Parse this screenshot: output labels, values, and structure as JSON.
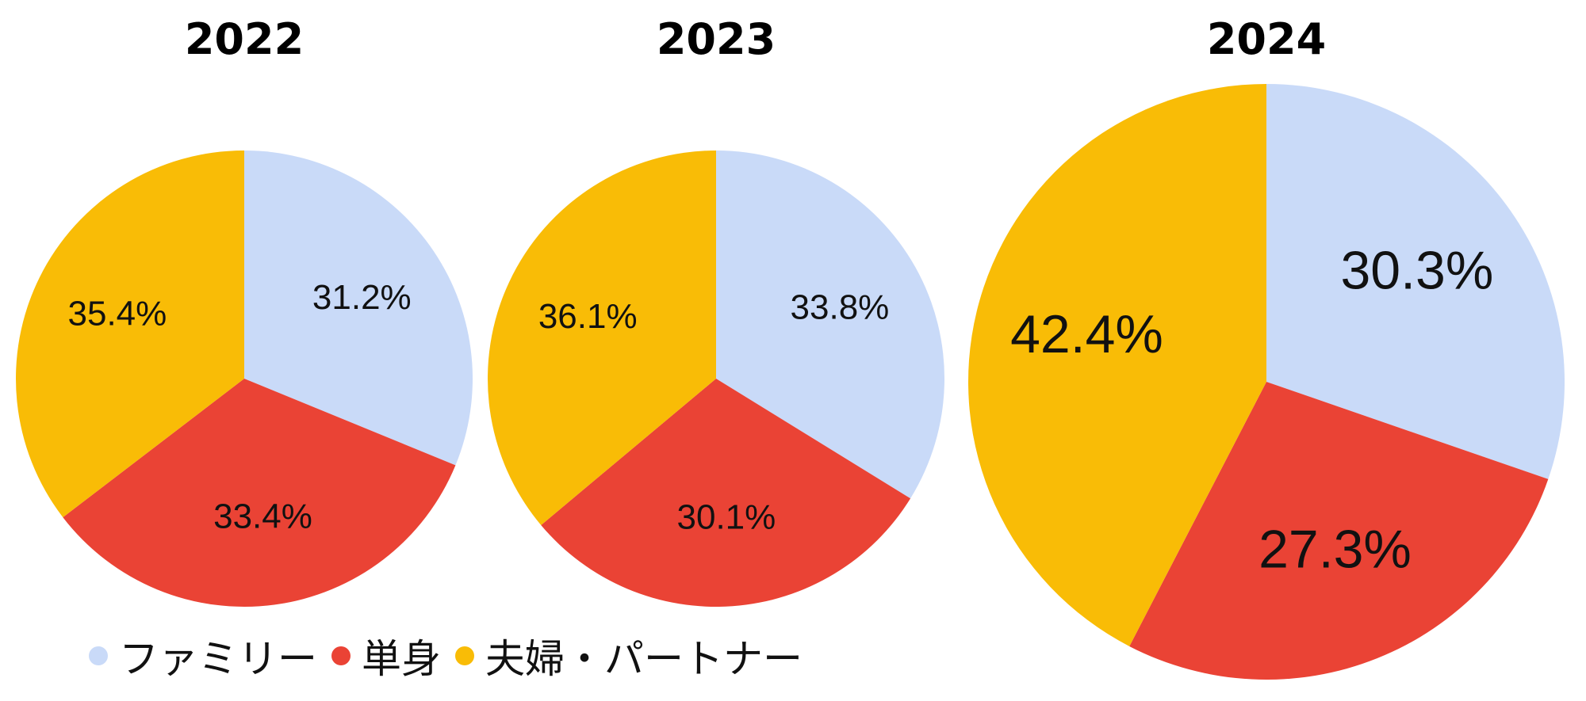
{
  "colors": {
    "family": "#c9daf8",
    "single": "#ea4335",
    "couple": "#f9bc06"
  },
  "legend": [
    {
      "key": "family",
      "label": "ファミリー"
    },
    {
      "key": "single",
      "label": "単身"
    },
    {
      "key": "couple",
      "label": "夫婦・パートナー"
    }
  ],
  "chart_data": [
    {
      "type": "pie",
      "title": "2022",
      "categories": [
        "ファミリー",
        "単身",
        "夫婦・パートナー"
      ],
      "values": [
        31.2,
        33.4,
        35.4
      ],
      "labels": [
        "31.2%",
        "33.4%",
        "35.4%"
      ]
    },
    {
      "type": "pie",
      "title": "2023",
      "categories": [
        "ファミリー",
        "単身",
        "夫婦・パートナー"
      ],
      "values": [
        33.8,
        30.1,
        36.1
      ],
      "labels": [
        "33.8%",
        "30.1%",
        "36.1%"
      ]
    },
    {
      "type": "pie",
      "title": "2024",
      "categories": [
        "ファミリー",
        "単身",
        "夫婦・パートナー"
      ],
      "values": [
        30.3,
        27.3,
        42.4
      ],
      "labels": [
        "30.3%",
        "27.3%",
        "42.4%"
      ]
    }
  ]
}
